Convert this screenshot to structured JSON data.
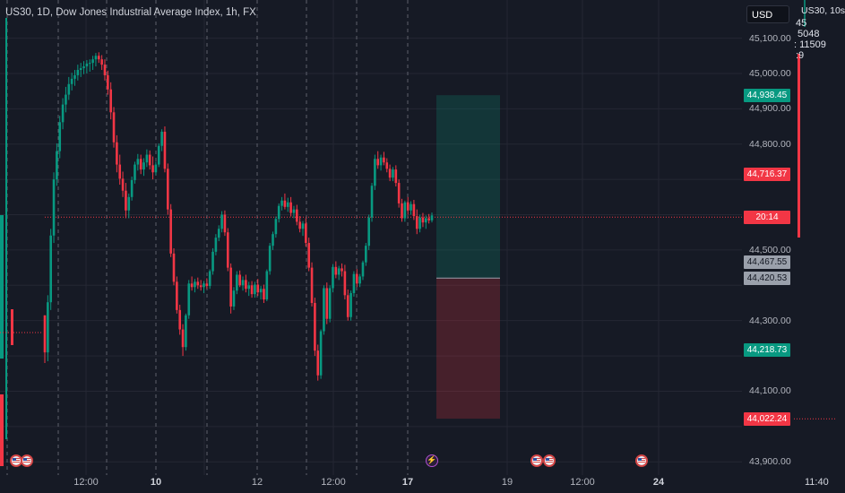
{
  "header": {
    "title": "US30, 1D,    Dow Jones Industrial Average Index, 1h, FX"
  },
  "toolbar": {
    "currency": "USD"
  },
  "right_overlay": {
    "title": "US30, 10s",
    "line1": "45",
    "line2": "5048",
    "line3": ": 11509",
    "line4": ":9"
  },
  "price_axis": {
    "ticks": [
      "45,100.00",
      "45,000.00",
      "44,900.00",
      "44,800.00",
      "44,500.00",
      "44,300.00",
      "44,100.00",
      "43,900.00"
    ],
    "tags": [
      {
        "label": "44,938.45",
        "color": "green"
      },
      {
        "label": "44,716.37",
        "color": "red"
      },
      {
        "label": "20:14",
        "color": "red"
      },
      {
        "label": "44,467.55",
        "color": "gray"
      },
      {
        "label": "44,420.53",
        "color": "gray"
      },
      {
        "label": "44,218.73",
        "color": "green"
      },
      {
        "label": "44,022.24",
        "color": "red"
      }
    ]
  },
  "time_axis": {
    "labels": [
      {
        "text": "12:00",
        "bold": false
      },
      {
        "text": "10",
        "bold": true
      },
      {
        "text": "12",
        "bold": false
      },
      {
        "text": "12:00",
        "bold": false
      },
      {
        "text": "17",
        "bold": true
      },
      {
        "text": "19",
        "bold": false
      },
      {
        "text": "12:00",
        "bold": false
      },
      {
        "text": "24",
        "bold": true
      }
    ],
    "right_time": "11:40"
  },
  "colors": {
    "bull": "#089981",
    "bear": "#f23645",
    "profit_zone": "rgba(8,153,129,0.22)",
    "loss_zone": "rgba(242,54,69,0.22)",
    "grid": "#242733",
    "background": "#161a25"
  },
  "chart_data": {
    "type": "candlestick",
    "y_range": [
      43860,
      45170
    ],
    "current_price_line": 44593,
    "candles_ohlc": [
      [
        44315,
        44315,
        44180,
        44210
      ],
      [
        44210,
        44372,
        44185,
        44352
      ],
      [
        44352,
        44560,
        44330,
        44541
      ],
      [
        44541,
        44720,
        44520,
        44700
      ],
      [
        44700,
        44802,
        44682,
        44780
      ],
      [
        44780,
        44880,
        44760,
        44862
      ],
      [
        44862,
        44930,
        44842,
        44912
      ],
      [
        44912,
        44962,
        44890,
        44940
      ],
      [
        44940,
        44990,
        44925,
        44970
      ],
      [
        44970,
        45002,
        44952,
        44985
      ],
      [
        44985,
        45010,
        44965,
        44995
      ],
      [
        44995,
        45025,
        44980,
        45010
      ],
      [
        45010,
        45030,
        44990,
        45015
      ],
      [
        45015,
        45035,
        44998,
        45020
      ],
      [
        45020,
        45038,
        45000,
        45028
      ],
      [
        45028,
        45040,
        45005,
        45030
      ],
      [
        45030,
        45050,
        45010,
        45040
      ],
      [
        45040,
        45058,
        45020,
        45050
      ],
      [
        45050,
        45060,
        45030,
        45040
      ],
      [
        45040,
        45052,
        45010,
        45025
      ],
      [
        45025,
        45040,
        44980,
        44995
      ],
      [
        44995,
        45008,
        44940,
        44955
      ],
      [
        44955,
        44975,
        44870,
        44890
      ],
      [
        44890,
        44905,
        44790,
        44805
      ],
      [
        44805,
        44825,
        44720,
        44742
      ],
      [
        44742,
        44770,
        44685,
        44702
      ],
      [
        44702,
        44722,
        44650,
        44668
      ],
      [
        44668,
        44690,
        44590,
        44612
      ],
      [
        44612,
        44660,
        44590,
        44650
      ],
      [
        44650,
        44708,
        44640,
        44698
      ],
      [
        44698,
        44750,
        44688,
        44742
      ],
      [
        44742,
        44772,
        44725,
        44758
      ],
      [
        44758,
        44770,
        44715,
        44728
      ],
      [
        44728,
        44760,
        44710,
        44748
      ],
      [
        44748,
        44785,
        44735,
        44770
      ],
      [
        44770,
        44782,
        44728,
        44740
      ],
      [
        44740,
        44765,
        44700,
        44720
      ],
      [
        44720,
        44750,
        44712,
        44742
      ],
      [
        44742,
        44802,
        44735,
        44795
      ],
      [
        44795,
        44842,
        44780,
        44835
      ],
      [
        44835,
        44850,
        44720,
        44730
      ],
      [
        44730,
        44745,
        44600,
        44615
      ],
      [
        44615,
        44630,
        44480,
        44490
      ],
      [
        44490,
        44505,
        44400,
        44410
      ],
      [
        44410,
        44425,
        44320,
        44330
      ],
      [
        44330,
        44345,
        44260,
        44275
      ],
      [
        44275,
        44290,
        44200,
        44225
      ],
      [
        44225,
        44320,
        44215,
        44315
      ],
      [
        44315,
        44415,
        44305,
        44405
      ],
      [
        44405,
        44425,
        44385,
        44395
      ],
      [
        44395,
        44418,
        44380,
        44410
      ],
      [
        44410,
        44422,
        44390,
        44400
      ],
      [
        44400,
        44415,
        44385,
        44395
      ],
      [
        44395,
        44412,
        44378,
        44405
      ],
      [
        44405,
        44420,
        44390,
        44398
      ],
      [
        44398,
        44445,
        44390,
        44440
      ],
      [
        44440,
        44505,
        44430,
        44495
      ],
      [
        44495,
        44545,
        44485,
        44535
      ],
      [
        44535,
        44570,
        44525,
        44560
      ],
      [
        44560,
        44610,
        44550,
        44600
      ],
      [
        44600,
        44612,
        44540,
        44550
      ],
      [
        44550,
        44562,
        44440,
        44450
      ],
      [
        44450,
        44462,
        44320,
        44340
      ],
      [
        44340,
        44395,
        44330,
        44385
      ],
      [
        44385,
        44440,
        44375,
        44430
      ],
      [
        44430,
        44442,
        44395,
        44400
      ],
      [
        44400,
        44425,
        44385,
        44415
      ],
      [
        44415,
        44430,
        44380,
        44390
      ],
      [
        44390,
        44410,
        44370,
        44400
      ],
      [
        44400,
        44412,
        44365,
        44375
      ],
      [
        44375,
        44410,
        44365,
        44402
      ],
      [
        44402,
        44418,
        44370,
        44380
      ],
      [
        44380,
        44398,
        44360,
        44390
      ],
      [
        44390,
        44402,
        44350,
        44360
      ],
      [
        44360,
        44445,
        44355,
        44440
      ],
      [
        44440,
        44520,
        44430,
        44512
      ],
      [
        44512,
        44552,
        44500,
        44545
      ],
      [
        44545,
        44595,
        44535,
        44588
      ],
      [
        44588,
        44632,
        44578,
        44625
      ],
      [
        44625,
        44650,
        44612,
        44640
      ],
      [
        44640,
        44660,
        44615,
        44622
      ],
      [
        44622,
        44648,
        44608,
        44635
      ],
      [
        44635,
        44650,
        44595,
        44605
      ],
      [
        44605,
        44625,
        44590,
        44615
      ],
      [
        44615,
        44628,
        44570,
        44580
      ],
      [
        44580,
        44596,
        44550,
        44560
      ],
      [
        44560,
        44582,
        44540,
        44575
      ],
      [
        44575,
        44590,
        44510,
        44520
      ],
      [
        44520,
        44535,
        44440,
        44450
      ],
      [
        44450,
        44465,
        44340,
        44350
      ],
      [
        44350,
        44365,
        44200,
        44215
      ],
      [
        44215,
        44232,
        44130,
        44145
      ],
      [
        44145,
        44275,
        44135,
        44270
      ],
      [
        44270,
        44400,
        44260,
        44392
      ],
      [
        44392,
        44408,
        44290,
        44305
      ],
      [
        44305,
        44400,
        44295,
        44392
      ],
      [
        44392,
        44460,
        44380,
        44452
      ],
      [
        44452,
        44468,
        44420,
        44430
      ],
      [
        44430,
        44455,
        44415,
        44448
      ],
      [
        44448,
        44462,
        44425,
        44440
      ],
      [
        44440,
        44458,
        44360,
        44372
      ],
      [
        44372,
        44388,
        44300,
        44310
      ],
      [
        44310,
        44385,
        44300,
        44378
      ],
      [
        44378,
        44440,
        44368,
        44432
      ],
      [
        44432,
        44446,
        44395,
        44405
      ],
      [
        44405,
        44432,
        44395,
        44425
      ],
      [
        44425,
        44470,
        44415,
        44465
      ],
      [
        44465,
        44520,
        44455,
        44512
      ],
      [
        44512,
        44600,
        44500,
        44592
      ],
      [
        44592,
        44690,
        44580,
        44682
      ],
      [
        44682,
        44770,
        44670,
        44758
      ],
      [
        44758,
        44780,
        44730,
        44740
      ],
      [
        44740,
        44770,
        44725,
        44762
      ],
      [
        44762,
        44778,
        44740,
        44748
      ],
      [
        44748,
        44760,
        44720,
        44730
      ],
      [
        44730,
        44742,
        44695,
        44705
      ],
      [
        44705,
        44735,
        44695,
        44728
      ],
      [
        44728,
        44740,
        44680,
        44690
      ],
      [
        44690,
        44700,
        44620,
        44632
      ],
      [
        44632,
        44645,
        44580,
        44590
      ],
      [
        44590,
        44640,
        44580,
        44635
      ],
      [
        44635,
        44650,
        44600,
        44612
      ],
      [
        44612,
        44638,
        44600,
        44630
      ],
      [
        44630,
        44642,
        44585,
        44596
      ],
      [
        44596,
        44615,
        44545,
        44560
      ],
      [
        44560,
        44600,
        44550,
        44592
      ],
      [
        44592,
        44605,
        44565,
        44578
      ],
      [
        44578,
        44598,
        44560,
        44590
      ],
      [
        44590,
        44602,
        44575,
        44584
      ],
      [
        44584,
        44606,
        44578,
        44598
      ]
    ],
    "position_tool": {
      "entry": 44420.53,
      "target": 44938.45,
      "stop": 44022.24
    }
  }
}
